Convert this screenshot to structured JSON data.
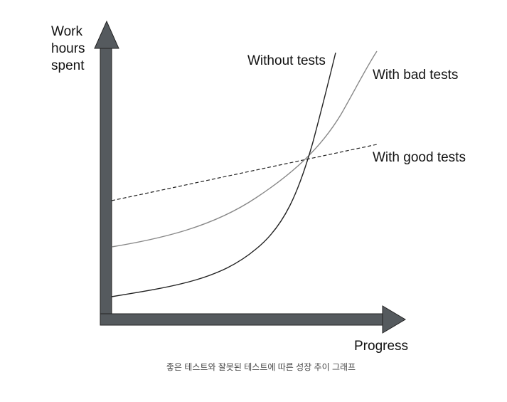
{
  "y_axis_label": [
    "Work",
    "hours",
    "spent"
  ],
  "x_axis_label": "Progress",
  "curves": [
    "Without tests",
    "With bad tests",
    "With good tests"
  ],
  "caption": "좋은 테스트와 잘못된 테스트에 따른 성장 추이 그래프"
}
